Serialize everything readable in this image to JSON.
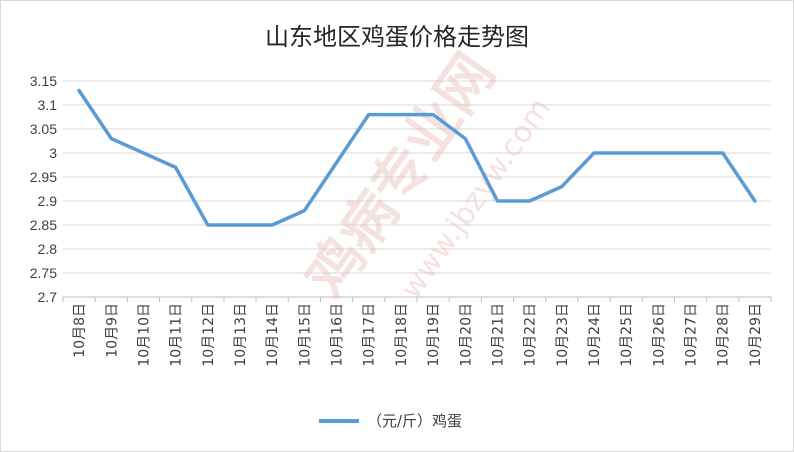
{
  "chart_data": {
    "type": "line",
    "title": "山东地区鸡蛋价格走势图",
    "categories": [
      "10月8日",
      "10月9日",
      "10月10日",
      "10月11日",
      "10月12日",
      "10月13日",
      "10月14日",
      "10月15日",
      "10月16日",
      "10月17日",
      "10月18日",
      "10月19日",
      "10月20日",
      "10月21日",
      "10月22日",
      "10月23日",
      "10月24日",
      "10月25日",
      "10月26日",
      "10月27日",
      "10月28日",
      "10月29日"
    ],
    "series": [
      {
        "name": "（元/斤）鸡蛋",
        "color": "#5b9bd5",
        "values": [
          3.13,
          3.03,
          3.0,
          2.97,
          2.85,
          2.85,
          2.85,
          2.88,
          2.98,
          3.08,
          3.08,
          3.08,
          3.03,
          2.9,
          2.9,
          2.93,
          3.0,
          3.0,
          3.0,
          3.0,
          3.0,
          2.9
        ]
      }
    ],
    "ylim": [
      2.7,
      3.15
    ],
    "yticks": [
      "2.7",
      "2.75",
      "2.8",
      "2.85",
      "2.9",
      "2.95",
      "3",
      "3.05",
      "3.1",
      "3.15"
    ],
    "grid": true,
    "legend_position": "bottom"
  },
  "watermark": {
    "main": "鸡病专业网",
    "url": "www.jbzyw.com"
  }
}
